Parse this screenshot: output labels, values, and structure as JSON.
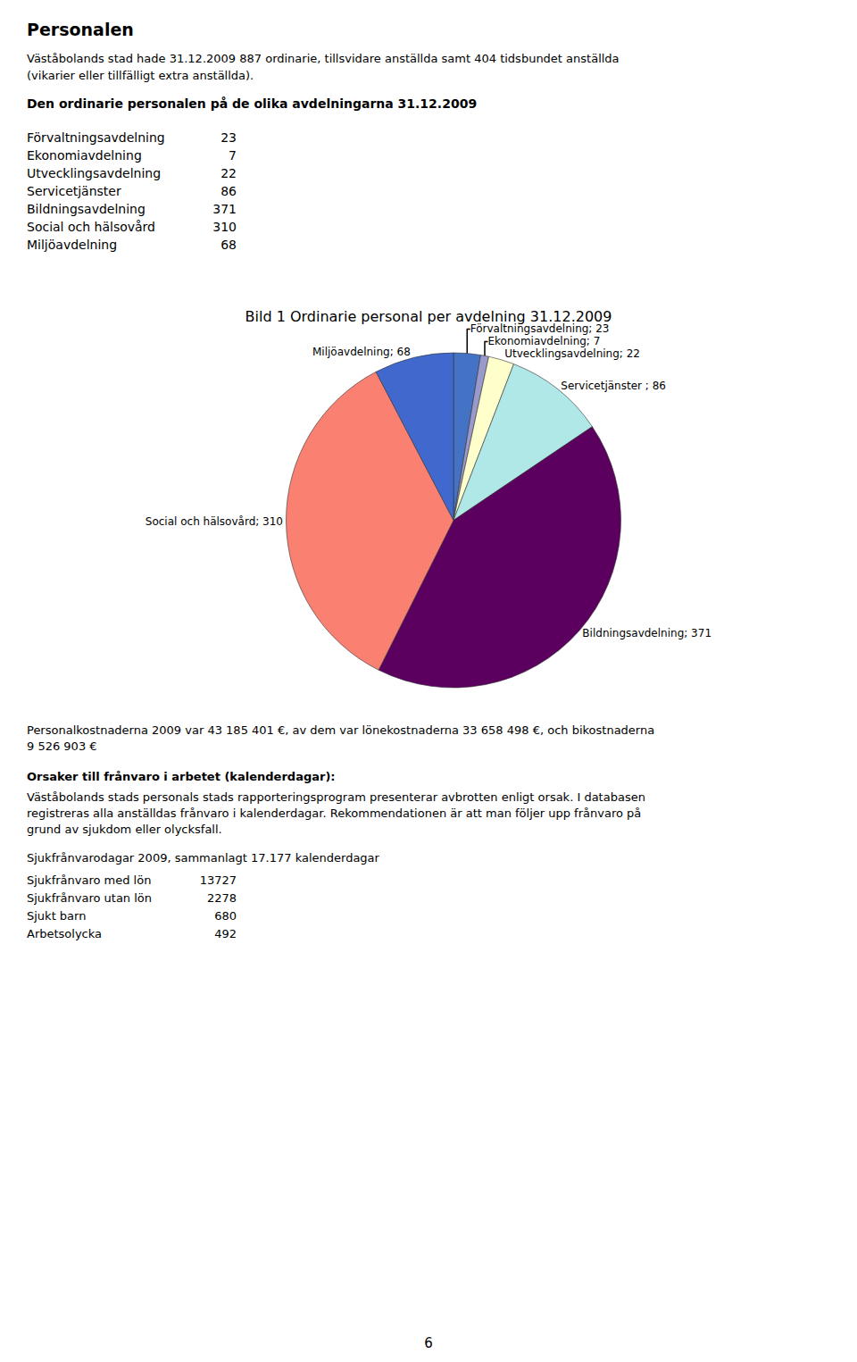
{
  "page_text": {
    "title": "Personalen",
    "subtitle": [
      "Väståbolands stad hade 31.12.2009  887 ordinarie, tillsvidare anställda samt 404 tidsbundet anställda",
      "(vikarier eller tillfälligt extra anställda)."
    ],
    "heading": "Den ordinarie personalen på de olika avdelningarna 31.12.2009",
    "table": [
      [
        "Förvaltningsavdelning",
        23
      ],
      [
        "Ekonomiavdelning",
        7
      ],
      [
        "Utvecklingsavdelning",
        22
      ],
      [
        "Servicetjänster",
        86
      ],
      [
        "Bildningsavdelning",
        371
      ],
      [
        "Social och hälsovård",
        310
      ],
      [
        "Miljöavdelning",
        68
      ]
    ],
    "text": [
      "Personalkostnaderna 2009 var 43 185 401 €, av dem var lönekostnaderna 33 658 498 €, och bikostnaderna",
      "9 526 903 €"
    ],
    "heading2": "Orsaker till frånvaro i arbetet (kalenderdagar):",
    "paragraph": [
      "Väståbolands stads personals stads rapporteringsprogram presenterar avbrotten enligt orsak. I databasen",
      "registreras alla anställdas frånvaro i kalenderdagar. Rekommendationen är att man följer upp frånvaro på",
      "grund av sjukdom eller olycksfall."
    ],
    "sjuk_heading": "Sjukfrånvarodagar 2009, sammanlagt 17.177 kalenderdagar",
    "sjuk_table": [
      [
        "Sjukfrånvaro med lön",
        13727
      ],
      [
        "Sjukfrånvaro utan lön",
        2278
      ],
      [
        "Sjukt barn",
        680
      ],
      [
        "Arbetsolycka",
        492
      ]
    ],
    "page_number": 6
  },
  "chart_data": {
    "type": "pie",
    "title": "Bild 1 Ordinarie personal per avdelning 31.12.2009",
    "categories": [
      "Förvaltningsavdelning; 23",
      "Ekonomiavdelning; 7",
      "Utvecklingsavdelning; 22",
      "Servicetjänster ; 86",
      "Bildningsavdelning; 371",
      "Social och hälsovård; 310",
      "Miljöavdelning; 68"
    ],
    "values": [
      23,
      7,
      22,
      86,
      371,
      310,
      68
    ],
    "colors": [
      "#4472C4",
      "#9999CC",
      "#FFFFCC",
      "#B0E8E8",
      "#5C0060",
      "#FA8072",
      "#4169CD"
    ],
    "legend": false
  }
}
